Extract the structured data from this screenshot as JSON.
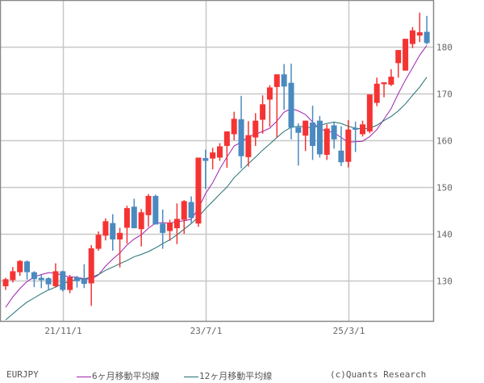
{
  "chart_data": {
    "type": "candlestick",
    "title": "EURJPY",
    "xlabel": "",
    "ylabel": "",
    "ylim": [
      121.2,
      188.6
    ],
    "yticks": [
      130,
      140,
      150,
      160,
      170,
      180
    ],
    "xticks": [
      {
        "label": "21/11/1",
        "index": 8
      },
      {
        "label": "23/7/1",
        "index": 28
      },
      {
        "label": "25/3/1",
        "index": 48
      }
    ],
    "grid": true,
    "legend_position": "bottom",
    "up_color": "#f53333",
    "down_color": "#4a8ac0",
    "candles": [
      {
        "o": 128.8,
        "h": 130.6,
        "l": 128.0,
        "c": 130.3
      },
      {
        "o": 130.1,
        "h": 132.9,
        "l": 129.6,
        "c": 132.0
      },
      {
        "o": 131.8,
        "h": 134.4,
        "l": 131.0,
        "c": 134.2
      },
      {
        "o": 134.1,
        "h": 134.3,
        "l": 130.2,
        "c": 131.8
      },
      {
        "o": 131.8,
        "h": 132.0,
        "l": 128.6,
        "c": 130.3
      },
      {
        "o": 130.6,
        "h": 131.2,
        "l": 128.4,
        "c": 130.1
      },
      {
        "o": 130.5,
        "h": 130.7,
        "l": 128.0,
        "c": 129.2
      },
      {
        "o": 128.8,
        "h": 133.7,
        "l": 128.5,
        "c": 132.0
      },
      {
        "o": 132.0,
        "h": 132.1,
        "l": 127.7,
        "c": 128.0
      },
      {
        "o": 128.0,
        "h": 131.2,
        "l": 127.3,
        "c": 130.7
      },
      {
        "o": 130.7,
        "h": 131.0,
        "l": 128.5,
        "c": 129.9
      },
      {
        "o": 130.4,
        "h": 133.5,
        "l": 128.4,
        "c": 129.3
      },
      {
        "o": 129.4,
        "h": 137.6,
        "l": 124.6,
        "c": 136.9
      },
      {
        "o": 136.8,
        "h": 140.5,
        "l": 136.4,
        "c": 139.8
      },
      {
        "o": 139.6,
        "h": 143.3,
        "l": 138.6,
        "c": 142.7
      },
      {
        "o": 142.3,
        "h": 144.2,
        "l": 136.4,
        "c": 138.8
      },
      {
        "o": 138.8,
        "h": 141.3,
        "l": 132.8,
        "c": 140.2
      },
      {
        "o": 141.3,
        "h": 146.0,
        "l": 137.9,
        "c": 145.5
      },
      {
        "o": 145.8,
        "h": 147.5,
        "l": 144.0,
        "c": 141.2
      },
      {
        "o": 141.0,
        "h": 145.3,
        "l": 137.3,
        "c": 144.6
      },
      {
        "o": 144.0,
        "h": 148.5,
        "l": 141.5,
        "c": 148.1
      },
      {
        "o": 148.1,
        "h": 148.4,
        "l": 142.8,
        "c": 142.0
      },
      {
        "o": 142.2,
        "h": 145.2,
        "l": 136.8,
        "c": 140.2
      },
      {
        "o": 140.6,
        "h": 143.0,
        "l": 138.5,
        "c": 142.4
      },
      {
        "o": 141.2,
        "h": 146.5,
        "l": 137.8,
        "c": 143.2
      },
      {
        "o": 143.0,
        "h": 147.2,
        "l": 140.0,
        "c": 147.0
      },
      {
        "o": 146.8,
        "h": 148.0,
        "l": 142.3,
        "c": 143.4
      },
      {
        "o": 142.2,
        "h": 156.2,
        "l": 141.5,
        "c": 156.3
      },
      {
        "o": 156.2,
        "h": 158.0,
        "l": 149.6,
        "c": 155.6
      },
      {
        "o": 156.1,
        "h": 158.4,
        "l": 153.8,
        "c": 157.4
      },
      {
        "o": 156.3,
        "h": 159.4,
        "l": 155.6,
        "c": 158.7
      },
      {
        "o": 158.8,
        "h": 160.6,
        "l": 154.1,
        "c": 161.9
      },
      {
        "o": 161.3,
        "h": 166.1,
        "l": 160.0,
        "c": 164.6
      },
      {
        "o": 164.5,
        "h": 169.5,
        "l": 154.0,
        "c": 156.6
      },
      {
        "o": 156.4,
        "h": 164.1,
        "l": 154.4,
        "c": 161.1
      },
      {
        "o": 160.6,
        "h": 165.8,
        "l": 158.8,
        "c": 164.2
      },
      {
        "o": 164.4,
        "h": 169.6,
        "l": 161.4,
        "c": 167.7
      },
      {
        "o": 168.7,
        "h": 171.8,
        "l": 162.9,
        "c": 171.3
      },
      {
        "o": 171.4,
        "h": 173.3,
        "l": 160.6,
        "c": 174.1
      },
      {
        "o": 174.1,
        "h": 176.3,
        "l": 166.5,
        "c": 171.5
      },
      {
        "o": 172.3,
        "h": 176.4,
        "l": 160.2,
        "c": 162.7
      },
      {
        "o": 162.8,
        "h": 163.6,
        "l": 154.6,
        "c": 161.6
      },
      {
        "o": 161.0,
        "h": 164.0,
        "l": 157.7,
        "c": 164.2
      },
      {
        "o": 163.8,
        "h": 167.4,
        "l": 155.8,
        "c": 158.8
      },
      {
        "o": 164.2,
        "h": 165.2,
        "l": 156.3,
        "c": 157.0
      },
      {
        "o": 156.9,
        "h": 163.4,
        "l": 155.8,
        "c": 162.5
      },
      {
        "o": 163.2,
        "h": 163.8,
        "l": 158.2,
        "c": 160.2
      },
      {
        "o": 157.8,
        "h": 163.0,
        "l": 154.5,
        "c": 155.3
      },
      {
        "o": 155.4,
        "h": 164.3,
        "l": 154.2,
        "c": 162.3
      },
      {
        "o": 162.6,
        "h": 164.0,
        "l": 157.5,
        "c": 162.3
      },
      {
        "o": 161.3,
        "h": 164.2,
        "l": 160.8,
        "c": 163.4
      },
      {
        "o": 161.9,
        "h": 168.2,
        "l": 161.5,
        "c": 169.8
      },
      {
        "o": 168.0,
        "h": 173.4,
        "l": 167.3,
        "c": 172.1
      },
      {
        "o": 172.0,
        "h": 172.2,
        "l": 169.2,
        "c": 172.4
      },
      {
        "o": 171.9,
        "h": 175.2,
        "l": 171.6,
        "c": 173.6
      },
      {
        "o": 176.5,
        "h": 177.6,
        "l": 173.4,
        "c": 179.3
      },
      {
        "o": 174.9,
        "h": 181.6,
        "l": 177.7,
        "c": 181.7
      },
      {
        "o": 180.6,
        "h": 184.2,
        "l": 179.7,
        "c": 183.5
      },
      {
        "o": 182.4,
        "h": 187.3,
        "l": 181.0,
        "c": 183.1
      },
      {
        "o": 183.2,
        "h": 186.6,
        "l": 180.5,
        "c": 180.8
      }
    ],
    "series": [
      {
        "name": "6ヶ月移動平均線",
        "color": "#a020b0",
        "values": [
          124.3,
          126.5,
          128.3,
          129.8,
          130.8,
          131.3,
          131.7,
          131.6,
          131.1,
          130.8,
          130.7,
          130.4,
          130.3,
          131.2,
          133.1,
          134.6,
          135.9,
          137.6,
          138.9,
          139.8,
          141.2,
          142.3,
          142.4,
          142.3,
          142.6,
          142.8,
          143.1,
          145.4,
          148.6,
          150.9,
          153.9,
          156.4,
          158.8,
          159.6,
          160.8,
          161.3,
          161.9,
          162.6,
          164.1,
          166.0,
          166.8,
          166.3,
          165.5,
          163.9,
          162.4,
          162.0,
          161.6,
          160.6,
          159.6,
          159.7,
          159.8,
          160.8,
          162.3,
          164.5,
          166.8,
          170.0,
          172.9,
          175.5,
          178.2,
          180.3
        ]
      },
      {
        "name": "12ヶ月移動平均線",
        "color": "#207070",
        "values": [
          121.6,
          122.9,
          124.2,
          125.4,
          126.3,
          127.2,
          128.0,
          128.6,
          129.3,
          129.9,
          130.3,
          130.4,
          130.7,
          131.3,
          132.2,
          132.9,
          133.6,
          134.3,
          135.1,
          135.6,
          136.2,
          137.0,
          137.9,
          138.7,
          139.8,
          141.0,
          142.2,
          143.6,
          145.4,
          146.9,
          148.5,
          150.0,
          152.0,
          153.5,
          155.0,
          156.4,
          157.9,
          159.2,
          160.6,
          161.9,
          162.8,
          163.0,
          162.9,
          162.6,
          163.2,
          163.6,
          163.9,
          163.6,
          163.0,
          162.6,
          162.4,
          162.6,
          163.2,
          164.2,
          165.1,
          166.3,
          167.8,
          169.6,
          171.4,
          173.5
        ]
      }
    ]
  },
  "legend": {
    "symbol": "EURJPY",
    "ma6_label": "6ヶ月移動平均線",
    "ma12_label": "12ヶ月移動平均線",
    "copyright": "(c)Quants Research"
  }
}
